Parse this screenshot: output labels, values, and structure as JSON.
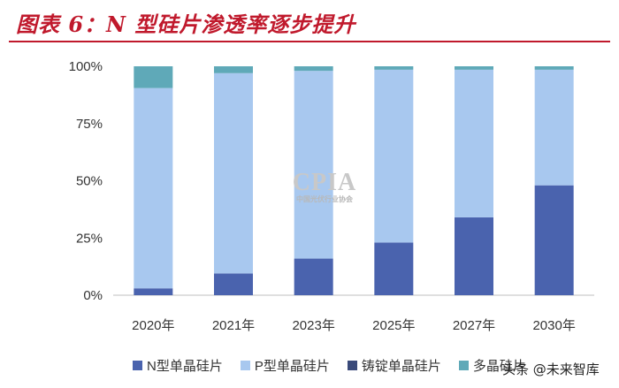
{
  "title": "图表 6：N 型硅片渗透率逐步提升",
  "colors": {
    "title": "#c0192c",
    "n_type": "#4a63ae",
    "p_type": "#a8c8ef",
    "cast_mono": "#3a4a7a",
    "multi": "#5fa9b8"
  },
  "chart_data": {
    "type": "bar",
    "stacked": true,
    "categories": [
      "2020年",
      "2021年",
      "2023年",
      "2025年",
      "2027年",
      "2030年"
    ],
    "series": [
      {
        "name": "N型单晶硅片",
        "color": "#4a63ae",
        "values": [
          3,
          9.5,
          16,
          23,
          34,
          48
        ]
      },
      {
        "name": "P型单晶硅片",
        "color": "#a8c8ef",
        "values": [
          87.5,
          87.5,
          82,
          75.5,
          64.5,
          50.5
        ]
      },
      {
        "name": "铸锭单晶硅片",
        "color": "#3a4a7a",
        "values": [
          0,
          0,
          0,
          0,
          0,
          0
        ]
      },
      {
        "name": "多晶硅片",
        "color": "#5fa9b8",
        "values": [
          9.5,
          3,
          2,
          1.5,
          1.5,
          1.5
        ]
      }
    ],
    "y_ticks": [
      "0%",
      "25%",
      "50%",
      "75%",
      "100%"
    ],
    "ylim": [
      0,
      100
    ],
    "grid": false,
    "legend_position": "bottom"
  },
  "watermark": {
    "text": "CPIA",
    "subtext": "中国光伏行业协会"
  },
  "attribution": "头条 @未来智库"
}
